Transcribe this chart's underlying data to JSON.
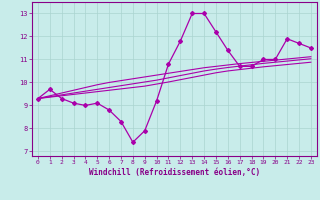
{
  "xlabel": "Windchill (Refroidissement éolien,°C)",
  "x": [
    0,
    1,
    2,
    3,
    4,
    5,
    6,
    7,
    8,
    9,
    10,
    11,
    12,
    13,
    14,
    15,
    16,
    17,
    18,
    19,
    20,
    21,
    22,
    23
  ],
  "y_main": [
    9.3,
    9.7,
    9.3,
    9.1,
    9.0,
    9.1,
    8.8,
    8.3,
    7.4,
    7.9,
    9.2,
    10.8,
    11.8,
    13.0,
    13.0,
    12.2,
    11.4,
    10.7,
    10.7,
    11.0,
    11.0,
    11.9,
    11.7,
    11.5
  ],
  "y_reg1": [
    9.3,
    9.36,
    9.42,
    9.48,
    9.54,
    9.6,
    9.66,
    9.72,
    9.78,
    9.84,
    9.93,
    10.02,
    10.12,
    10.22,
    10.32,
    10.42,
    10.5,
    10.56,
    10.62,
    10.68,
    10.73,
    10.78,
    10.83,
    10.88
  ],
  "y_reg2": [
    9.3,
    9.38,
    9.46,
    9.54,
    9.62,
    9.7,
    9.78,
    9.86,
    9.94,
    10.02,
    10.1,
    10.2,
    10.3,
    10.4,
    10.5,
    10.58,
    10.65,
    10.71,
    10.77,
    10.83,
    10.88,
    10.93,
    10.98,
    11.03
  ],
  "y_reg3": [
    9.3,
    9.42,
    9.54,
    9.66,
    9.78,
    9.9,
    10.0,
    10.08,
    10.16,
    10.24,
    10.32,
    10.4,
    10.48,
    10.56,
    10.64,
    10.7,
    10.76,
    10.82,
    10.87,
    10.92,
    10.97,
    11.02,
    11.07,
    11.12
  ],
  "line_color": "#aa00aa",
  "bg_color": "#c8ecea",
  "grid_color": "#aad4d0",
  "ylim": [
    6.8,
    13.5
  ],
  "yticks": [
    7,
    8,
    9,
    10,
    11,
    12,
    13
  ],
  "xlim": [
    -0.5,
    23.5
  ],
  "xticks": [
    0,
    1,
    2,
    3,
    4,
    5,
    6,
    7,
    8,
    9,
    10,
    11,
    12,
    13,
    14,
    15,
    16,
    17,
    18,
    19,
    20,
    21,
    22,
    23
  ]
}
